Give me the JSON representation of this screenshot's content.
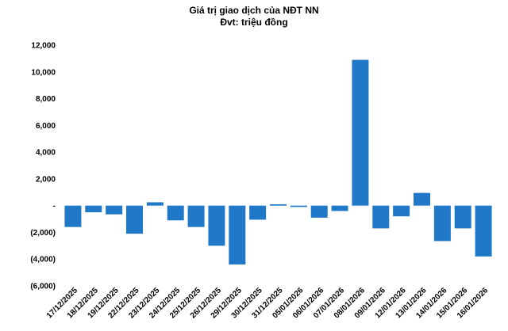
{
  "chart_data": {
    "type": "bar",
    "title": "Giá trị giao dịch của NĐT NN",
    "subtitle": "Đvt: triệu đồng",
    "xlabel": "",
    "ylabel": "",
    "ylim": [
      -6000,
      12000
    ],
    "y_ticks": [
      {
        "value": 12000,
        "label": "12,000"
      },
      {
        "value": 10000,
        "label": "10,000"
      },
      {
        "value": 8000,
        "label": "8,000"
      },
      {
        "value": 6000,
        "label": "6,000"
      },
      {
        "value": 4000,
        "label": "4,000"
      },
      {
        "value": 2000,
        "label": "2,000"
      },
      {
        "value": 0,
        "label": "-"
      },
      {
        "value": -2000,
        "label": "(2,000)"
      },
      {
        "value": -4000,
        "label": "(4,000)"
      },
      {
        "value": -6000,
        "label": "(6,000)"
      }
    ],
    "categories": [
      "17/12/2025",
      "18/12/2025",
      "19/12/2025",
      "22/12/2025",
      "23/12/2025",
      "24/12/2025",
      "25/12/2025",
      "26/12/2025",
      "29/12/2025",
      "30/12/2025",
      "31/12/2025",
      "05/01/2026",
      "06/01/2026",
      "07/01/2026",
      "08/01/2026",
      "09/01/2026",
      "12/01/2026",
      "13/01/2026",
      "14/01/2026",
      "15/01/2026",
      "16/01/2026"
    ],
    "values": [
      -1600,
      -500,
      -650,
      -2100,
      250,
      -1100,
      -1600,
      -3000,
      -4400,
      -1050,
      100,
      -100,
      -900,
      -400,
      10900,
      -1700,
      -800,
      950,
      -2650,
      -1700,
      -3800
    ],
    "bar_color": "#1f78c8",
    "grid": false,
    "legend": "none"
  }
}
